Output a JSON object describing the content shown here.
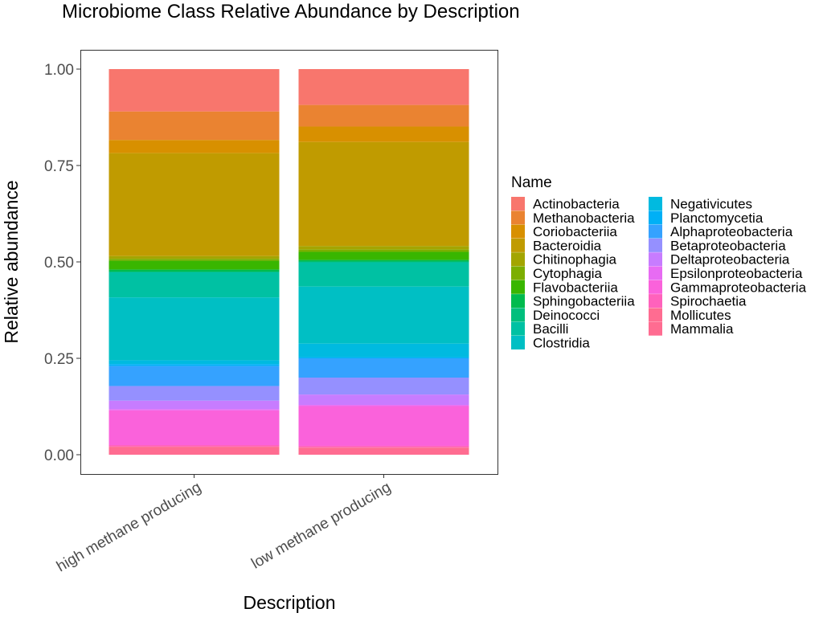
{
  "chart_data": {
    "type": "bar",
    "stacked": true,
    "title": "Microbiome Class Relative Abundance by Description",
    "xlabel": "Description",
    "ylabel": "Relative abundance",
    "categories": [
      "high methane producing",
      "low methane producing"
    ],
    "ylim": [
      0,
      1
    ],
    "yticks": [
      "0.00",
      "0.25",
      "0.50",
      "0.75",
      "1.00"
    ],
    "legend": {
      "title": "Name",
      "position": "right",
      "columns": 2
    },
    "grid": false,
    "series": [
      {
        "name": "Actinobacteria",
        "color": "#F8766D",
        "values": [
          0.11,
          0.093
        ]
      },
      {
        "name": "Methanobacteria",
        "color": "#EA8331",
        "values": [
          0.074,
          0.056
        ]
      },
      {
        "name": "Coriobacteriia",
        "color": "#D89000",
        "values": [
          0.034,
          0.04
        ]
      },
      {
        "name": "Bacteroidia",
        "color": "#C09B00",
        "values": [
          0.267,
          0.27
        ]
      },
      {
        "name": "Chitinophagia",
        "color": "#A3A500",
        "values": [
          0.007,
          0.009
        ]
      },
      {
        "name": "Cytophagia",
        "color": "#7CAE00",
        "values": [
          0.005,
          0.006
        ]
      },
      {
        "name": "Flavobacteriia",
        "color": "#39B600",
        "values": [
          0.023,
          0.021
        ]
      },
      {
        "name": "Sphingobacteriia",
        "color": "#00BB4E",
        "values": [
          0.005,
          0.004
        ]
      },
      {
        "name": "Deinococci",
        "color": "#00BF7D",
        "values": [
          0.002,
          0.002
        ]
      },
      {
        "name": "Bacilli",
        "color": "#00C1A3",
        "values": [
          0.065,
          0.063
        ]
      },
      {
        "name": "Clostridia",
        "color": "#00BFC4",
        "values": [
          0.163,
          0.148
        ]
      },
      {
        "name": "Negativicutes",
        "color": "#00BAE0",
        "values": [
          0.01,
          0.035
        ]
      },
      {
        "name": "Planctomycetia",
        "color": "#00B0F6",
        "values": [
          0.005,
          0.003
        ]
      },
      {
        "name": "Alphaproteobacteria",
        "color": "#35A2FF",
        "values": [
          0.052,
          0.05
        ]
      },
      {
        "name": "Betaproteobacteria",
        "color": "#9590FF",
        "values": [
          0.038,
          0.044
        ]
      },
      {
        "name": "Deltaproteobacteria",
        "color": "#C77CFF",
        "values": [
          0.022,
          0.027
        ]
      },
      {
        "name": "Epsilonproteobacteria",
        "color": "#E76BF3",
        "values": [
          0.003,
          0.003
        ]
      },
      {
        "name": "Gammaproteobacteria",
        "color": "#FA62DB",
        "values": [
          0.09,
          0.103
        ]
      },
      {
        "name": "Spirochaetia",
        "color": "#FF62BC",
        "values": [
          0.004,
          0.004
        ]
      },
      {
        "name": "Mollicutes",
        "color": "#FF6C91",
        "values": [
          0.001,
          0.001
        ]
      },
      {
        "name": "Mammalia",
        "color": "#FF6C91",
        "values": [
          0.02,
          0.018
        ]
      }
    ]
  }
}
